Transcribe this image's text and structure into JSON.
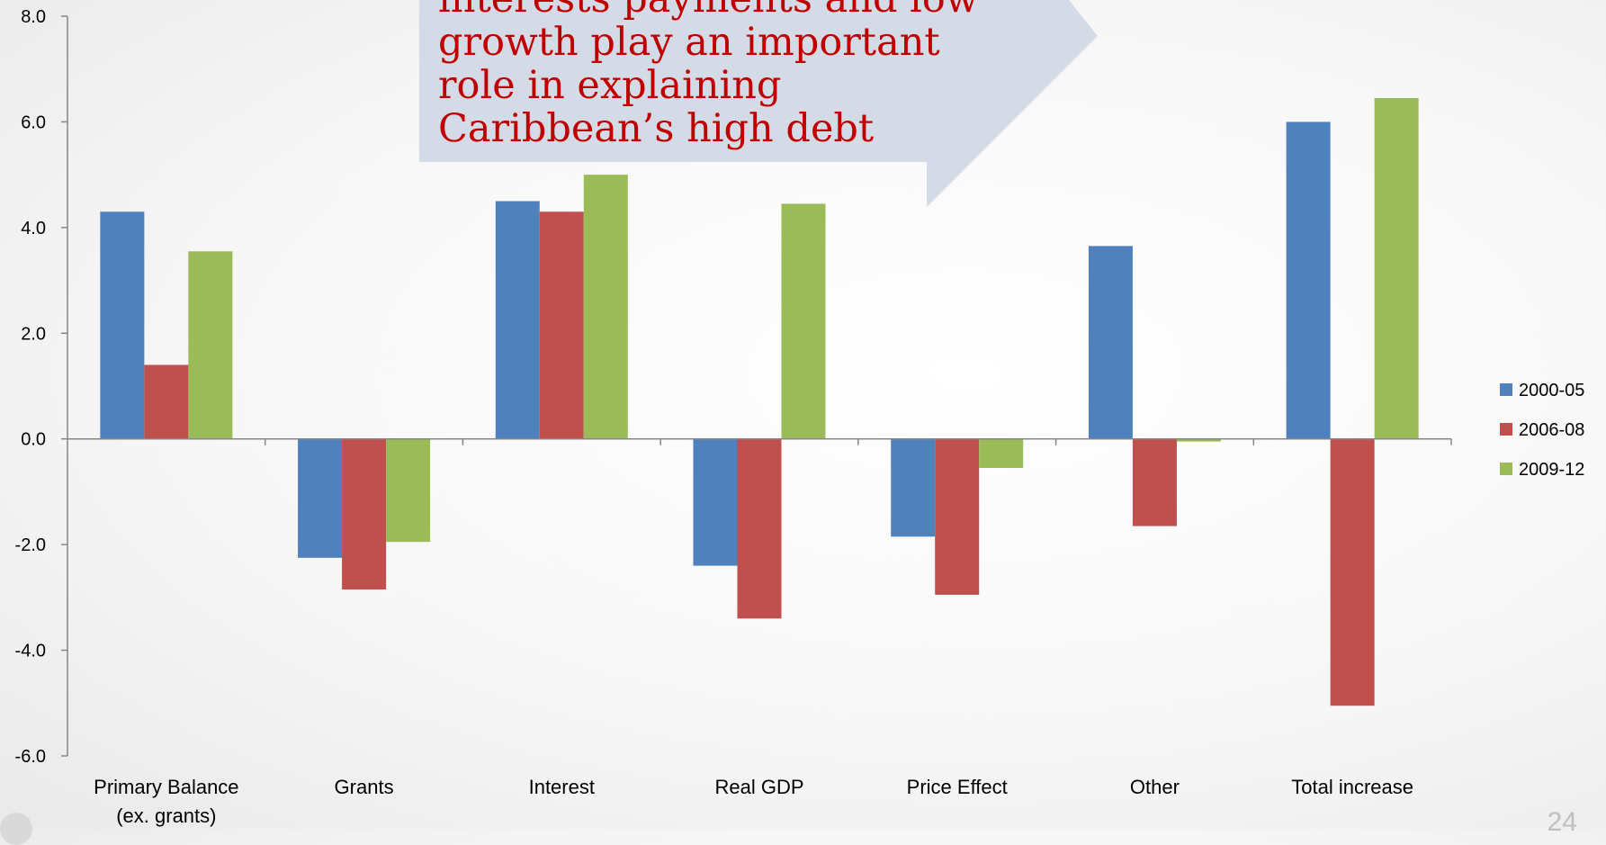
{
  "chart_data": {
    "type": "bar",
    "categories": [
      "Primary Balance (ex. grants)",
      "Grants",
      "Interest",
      "Real GDP",
      "Price Effect",
      "Other",
      "Total increase"
    ],
    "category_lines": [
      [
        "Primary Balance",
        "(ex. grants)"
      ],
      [
        "Grants"
      ],
      [
        "Interest"
      ],
      [
        "Real GDP"
      ],
      [
        "Price Effect"
      ],
      [
        "Other"
      ],
      [
        "Total increase"
      ]
    ],
    "series": [
      {
        "name": "2000-05",
        "color": "#4f81bd",
        "values": [
          4.3,
          -2.25,
          4.5,
          -2.4,
          -1.85,
          3.65,
          6.0
        ]
      },
      {
        "name": "2006-08",
        "color": "#c0504d",
        "values": [
          1.4,
          -2.85,
          4.3,
          -3.4,
          -2.95,
          -1.65,
          -5.05
        ]
      },
      {
        "name": "2009-12",
        "color": "#9bbb59",
        "values": [
          3.55,
          -1.95,
          5.0,
          4.45,
          -0.55,
          -0.05,
          6.45
        ]
      }
    ],
    "ylim": [
      -6.0,
      8.0
    ],
    "yticks": [
      "-6.0",
      "-4.0",
      "-2.0",
      "0.0",
      "2.0",
      "4.0",
      "6.0",
      "8.0"
    ],
    "ytick_values": [
      -6,
      -4,
      -2,
      0,
      2,
      4,
      6,
      8
    ],
    "grid": false,
    "legend_position": "right",
    "xlabel": "",
    "ylabel": ""
  },
  "callout": {
    "lines": [
      "interests payments and low",
      "growth play an important",
      "role in explaining",
      "Caribbean’s high debt"
    ],
    "fill": "#d5dae7",
    "text_color": "#c00000"
  },
  "page_number": "24"
}
